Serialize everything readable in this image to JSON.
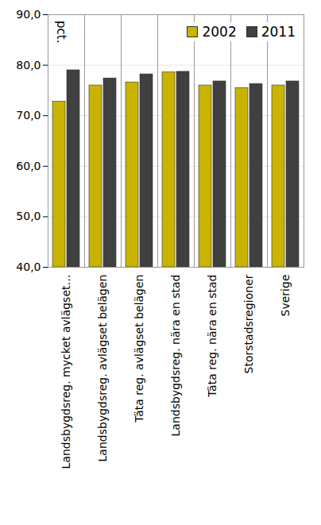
{
  "chart_data": {
    "type": "bar",
    "ylabel": "pct.",
    "categories": [
      "Landsbygdsreg. mycket avlägset…",
      "Landsbygdsreg. avlägset belägen",
      "Täta reg. avlägset belägen",
      "Landsbygdsreg. nära en stad",
      "Täta reg. nära en stad",
      "Storstadsregioner",
      "Sverige"
    ],
    "series": [
      {
        "name": "2002",
        "color": "#c8b400",
        "values": [
          72.8,
          76.0,
          76.6,
          78.6,
          76.0,
          75.5,
          76.0
        ]
      },
      {
        "name": "2011",
        "color": "#404040",
        "values": [
          79.0,
          77.4,
          78.2,
          78.7,
          76.8,
          76.3,
          76.8
        ]
      }
    ],
    "ylim": [
      40,
      90
    ],
    "yticks": [
      {
        "value": 40,
        "label": "40,0"
      },
      {
        "value": 50,
        "label": "50,0"
      },
      {
        "value": 60,
        "label": "60,0"
      },
      {
        "value": 70,
        "label": "70,0"
      },
      {
        "value": 80,
        "label": "80,0"
      },
      {
        "value": 90,
        "label": "90,0"
      }
    ],
    "grid": true,
    "legend": "top-right"
  }
}
